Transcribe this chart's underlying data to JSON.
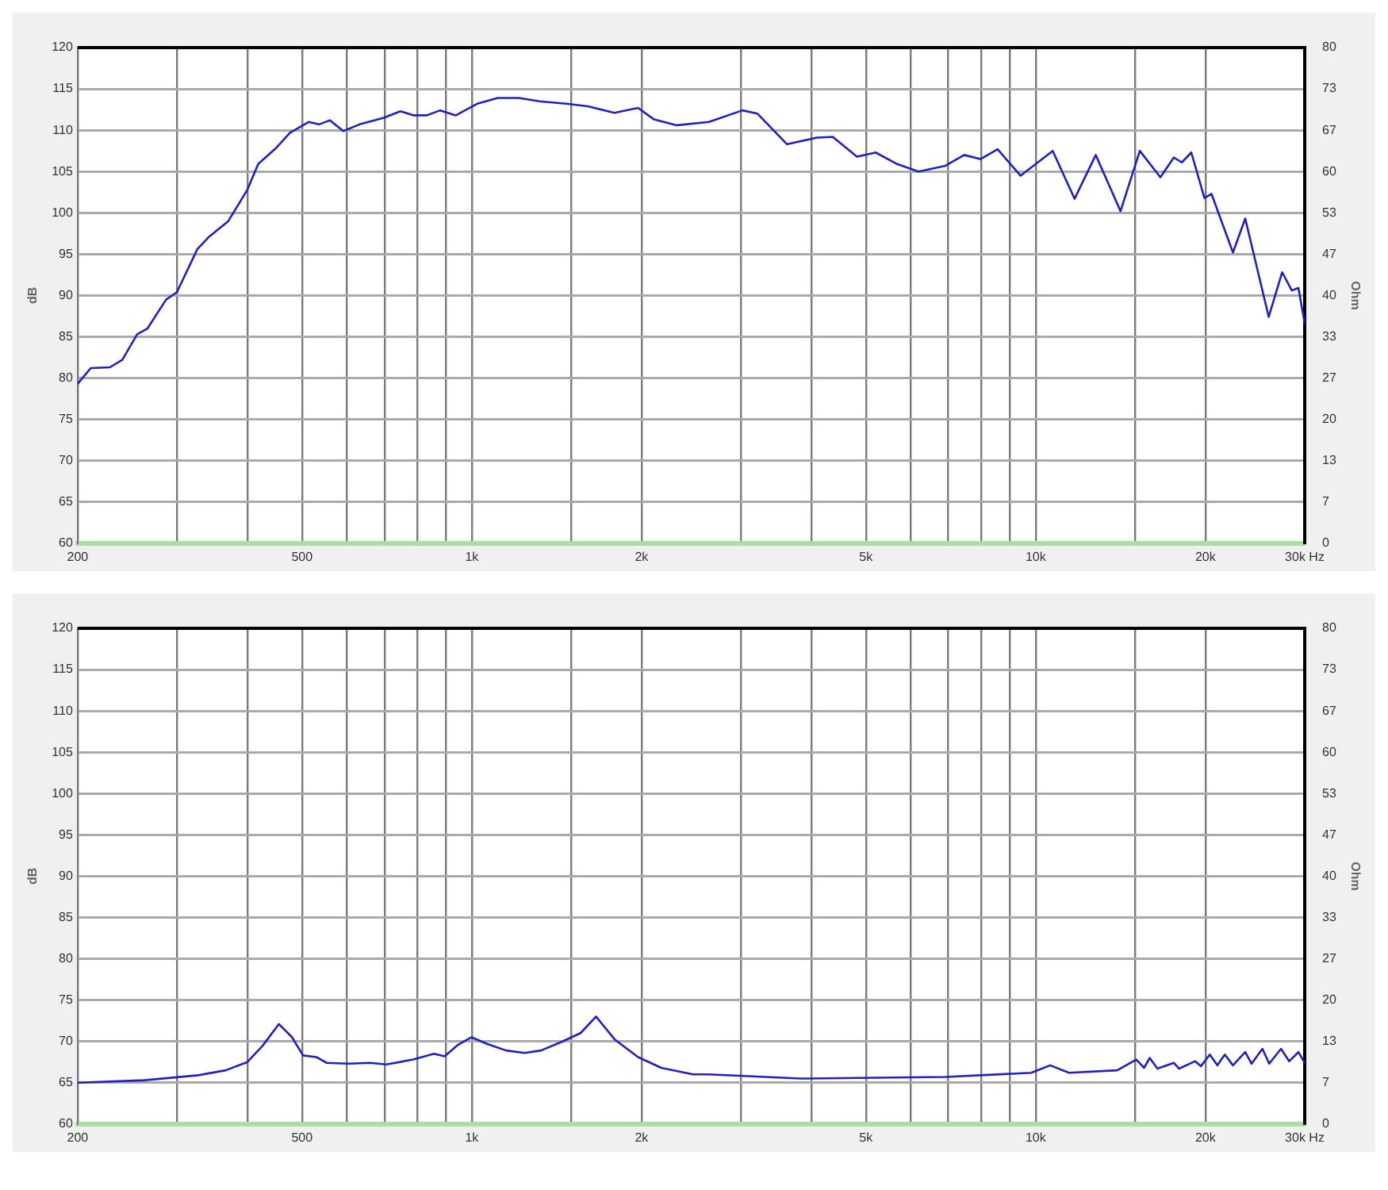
{
  "chart_data": [
    {
      "type": "line",
      "ylabel": "dB",
      "y2label": "Ohm",
      "log": "x",
      "grid": true,
      "legend": false,
      "marker": "none",
      "line_style": "solid",
      "xlim": [
        200,
        30000
      ],
      "xticks": [
        {
          "value": 200,
          "label": "200"
        },
        {
          "value": 300,
          "label": null
        },
        {
          "value": 400,
          "label": null
        },
        {
          "value": 500,
          "label": "500"
        },
        {
          "value": 600,
          "label": null
        },
        {
          "value": 700,
          "label": null
        },
        {
          "value": 800,
          "label": null
        },
        {
          "value": 900,
          "label": null
        },
        {
          "value": 1000,
          "label": "1k"
        },
        {
          "value": 1500,
          "label": null
        },
        {
          "value": 2000,
          "label": "2k"
        },
        {
          "value": 3000,
          "label": null
        },
        {
          "value": 4000,
          "label": null
        },
        {
          "value": 5000,
          "label": "5k"
        },
        {
          "value": 6000,
          "label": null
        },
        {
          "value": 7000,
          "label": null
        },
        {
          "value": 8000,
          "label": null
        },
        {
          "value": 9000,
          "label": null
        },
        {
          "value": 10000,
          "label": "10k"
        },
        {
          "value": 15000,
          "label": null
        },
        {
          "value": 20000,
          "label": "20k"
        },
        {
          "value": 30000,
          "label": "30k Hz"
        }
      ],
      "ylim": [
        60,
        120
      ],
      "yticks": [
        60,
        65,
        70,
        75,
        80,
        85,
        90,
        95,
        100,
        105,
        110,
        115,
        120
      ],
      "y2lim": [
        0,
        80
      ],
      "y2ticks": [
        0,
        {
          "value": 6.67,
          "label": "7"
        },
        {
          "value": 13.33,
          "label": "13"
        },
        20,
        {
          "value": 26.67,
          "label": "27"
        },
        {
          "value": 33.33,
          "label": "33"
        },
        40,
        {
          "value": 46.67,
          "label": "47"
        },
        {
          "value": 53.33,
          "label": "53"
        },
        60,
        {
          "value": 66.67,
          "label": "67"
        },
        {
          "value": 73.33,
          "label": "73"
        },
        80
      ],
      "series": [
        {
          "color": "#2020c0",
          "x": [
            200,
            211,
            228,
            240,
            255,
            266,
            287,
            300,
            326,
            342,
            370,
            400,
            418,
            449,
            476,
            514,
            536,
            560,
            592,
            632,
            698,
            747,
            789,
            832,
            879,
            937,
            1022,
            1112,
            1212,
            1320,
            1472,
            1607,
            1790,
            1972,
            2105,
            2310,
            2632,
            3020,
            3212,
            3623,
            4090,
            4366,
            4820,
            5204,
            5680,
            6198,
            6918,
            7467,
            7980,
            8560,
            9400,
            10720,
            11720,
            12780,
            14140,
            15300,
            16640,
            17580,
            18160,
            18880,
            19920,
            20500,
            22380,
            23530,
            25900,
            27360,
            28460,
            29240,
            30000
          ],
          "values": [
            79.3,
            81.2,
            81.3,
            82.2,
            85.3,
            86,
            89.5,
            90.4,
            95.6,
            97.1,
            99,
            102.8,
            105.9,
            107.8,
            109.7,
            111,
            110.7,
            111.2,
            109.9,
            110.7,
            111.5,
            112.3,
            111.8,
            111.8,
            112.4,
            111.8,
            113.2,
            113.9,
            113.9,
            113.5,
            113.2,
            112.9,
            112.1,
            112.7,
            111.3,
            110.6,
            111,
            112.4,
            112,
            108.3,
            109.1,
            109.2,
            106.8,
            107.3,
            105.9,
            105,
            105.7,
            107,
            106.5,
            107.7,
            104.5,
            107.5,
            101.7,
            107,
            100.2,
            107.5,
            104.3,
            106.7,
            106.1,
            107.3,
            101.8,
            102.3,
            95.2,
            99.3,
            87.4,
            92.8,
            90.6,
            90.9,
            86.6
          ]
        }
      ]
    },
    {
      "type": "line",
      "ylabel": "dB",
      "y2label": "Ohm",
      "log": "x",
      "grid": true,
      "legend": false,
      "marker": "none",
      "line_style": "solid",
      "xlim": [
        200,
        30000
      ],
      "xticks": [
        {
          "value": 200,
          "label": "200"
        },
        {
          "value": 300,
          "label": null
        },
        {
          "value": 400,
          "label": null
        },
        {
          "value": 500,
          "label": "500"
        },
        {
          "value": 600,
          "label": null
        },
        {
          "value": 700,
          "label": null
        },
        {
          "value": 800,
          "label": null
        },
        {
          "value": 900,
          "label": null
        },
        {
          "value": 1000,
          "label": "1k"
        },
        {
          "value": 1500,
          "label": null
        },
        {
          "value": 2000,
          "label": "2k"
        },
        {
          "value": 3000,
          "label": null
        },
        {
          "value": 4000,
          "label": null
        },
        {
          "value": 5000,
          "label": "5k"
        },
        {
          "value": 6000,
          "label": null
        },
        {
          "value": 7000,
          "label": null
        },
        {
          "value": 8000,
          "label": null
        },
        {
          "value": 9000,
          "label": null
        },
        {
          "value": 10000,
          "label": "10k"
        },
        {
          "value": 15000,
          "label": null
        },
        {
          "value": 20000,
          "label": "20k"
        },
        {
          "value": 30000,
          "label": "30k Hz"
        }
      ],
      "ylim": [
        60,
        120
      ],
      "yticks": [
        60,
        65,
        70,
        75,
        80,
        85,
        90,
        95,
        100,
        105,
        110,
        115,
        120
      ],
      "y2lim": [
        0,
        80
      ],
      "y2ticks": [
        0,
        {
          "value": 6.67,
          "label": "7"
        },
        {
          "value": 13.33,
          "label": "13"
        },
        20,
        {
          "value": 26.67,
          "label": "27"
        },
        {
          "value": 33.33,
          "label": "33"
        },
        40,
        {
          "value": 46.67,
          "label": "47"
        },
        {
          "value": 53.33,
          "label": "53"
        },
        60,
        {
          "value": 66.67,
          "label": "67"
        },
        {
          "value": 73.33,
          "label": "73"
        },
        80
      ],
      "series": [
        {
          "color": "#2020c0",
          "x": [
            200,
            263,
            327,
            366,
            400,
            426,
            455,
            480,
            502,
            530,
            553,
            604,
            660,
            705,
            787,
            857,
            895,
            946,
            999,
            1064,
            1150,
            1240,
            1327,
            1438,
            1559,
            1661,
            1794,
            1972,
            2168,
            2467,
            2632,
            3830,
            6918,
            9820,
            10610,
            11460,
            13950,
            15080,
            15570,
            15930,
            16440,
            17580,
            17960,
            19180,
            19640,
            20360,
            21000,
            21650,
            22380,
            23530,
            24150,
            25240,
            25950,
            27230,
            28160,
            29240,
            30000
          ],
          "values": [
            65,
            65.3,
            65.9,
            66.5,
            67.5,
            69.5,
            72.1,
            70.5,
            68.3,
            68.1,
            67.4,
            67.3,
            67.4,
            67.2,
            67.8,
            68.5,
            68.2,
            69.6,
            70.5,
            69.7,
            68.9,
            68.6,
            68.9,
            69.9,
            71,
            73,
            70.2,
            68.1,
            66.8,
            66,
            66,
            65.5,
            65.7,
            66.2,
            67.1,
            66.2,
            66.5,
            67.8,
            66.8,
            68,
            66.7,
            67.4,
            66.7,
            67.6,
            67,
            68.4,
            67.1,
            68.4,
            67.1,
            68.7,
            67.3,
            69.1,
            67.3,
            69.1,
            67.6,
            68.7,
            67.4
          ]
        }
      ]
    }
  ]
}
